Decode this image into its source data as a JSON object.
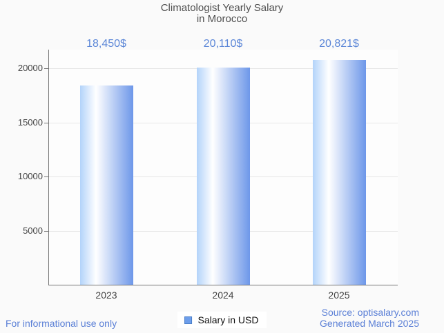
{
  "title": "Climatologist Yearly Salary\nin Morocco",
  "legend": {
    "label": "Salary in USD"
  },
  "footer": {
    "disclaimer": "For informational use only",
    "source_line1": "Source: optisalary.com",
    "source_line2": "Generated March 2025"
  },
  "colors": {
    "page_bg": "#fafafa",
    "plot_bg": "#fdfdfd",
    "title_text": "#4f4f4f",
    "value_text": "#5b86d7",
    "footer_text": "#5a7fd6",
    "axis_text": "#444444",
    "axis_line": "#757575",
    "gridline": "#e6e6e6",
    "bar_gradient_left": "#b3d3fa",
    "bar_gradient_mid": "#ffffff",
    "bar_gradient_right": "#6d97e9",
    "legend_swatch": "#6d9eeb",
    "legend_swatch_border": "#4a7fc9"
  },
  "chart_data": {
    "type": "bar",
    "title": "Climatologist Yearly Salary in Morocco",
    "categories": [
      "2023",
      "2024",
      "2025"
    ],
    "series": [
      {
        "name": "Salary in USD",
        "values": [
          18450,
          20110,
          20821
        ]
      }
    ],
    "value_labels": [
      "18,450$",
      "20,110$",
      "20,821$"
    ],
    "xlabel": "",
    "ylabel": "",
    "yticks": [
      5000,
      10000,
      15000,
      20000
    ],
    "ylim": [
      0,
      21750
    ],
    "grid": true,
    "legend_position": "bottom",
    "bar_orientation": "vertical"
  }
}
